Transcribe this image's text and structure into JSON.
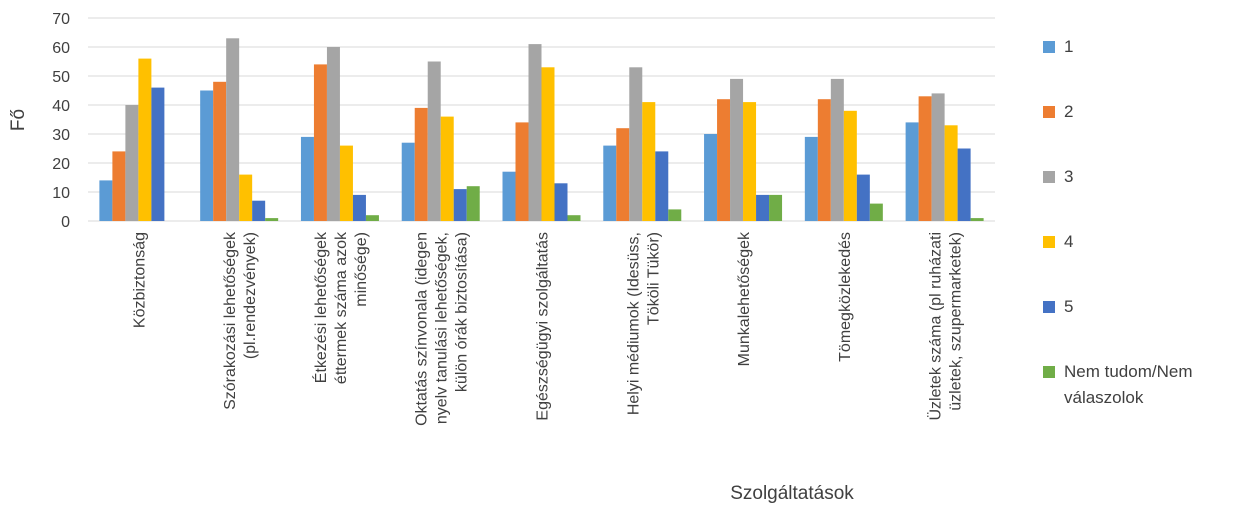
{
  "chart_data": {
    "type": "bar",
    "xlabel": "Szolgáltatások",
    "ylabel": "Fő",
    "ylim": [
      0,
      70
    ],
    "yticks": [
      "0",
      "10",
      "20",
      "30",
      "40",
      "50",
      "60",
      "70"
    ],
    "grid": true,
    "legend_position": "right",
    "categories": [
      [
        "Közbiztonság"
      ],
      [
        "Szórakozási lehetőségek",
        "(pl.rendezvények)"
      ],
      [
        "Étkezési lehetőségek",
        "éttermek száma azok",
        "minősége)"
      ],
      [
        "Oktatás színvonala (idegen",
        "nyelv tanulási lehetőségek,",
        "külön órák biztosítása)"
      ],
      [
        "Egészségügyi szolgáltatás"
      ],
      [
        "Helyi médiumok (Idesüss,",
        "Tököli Tükör)"
      ],
      [
        "Munkalehetőségek"
      ],
      [
        "Tömegközlekedés"
      ],
      [
        "Üzletek száma (pl ruházati",
        "üzletek, szupermarketek)"
      ]
    ],
    "series": [
      {
        "name": "1",
        "color": "#5B9BD5",
        "values": [
          14,
          45,
          29,
          27,
          17,
          26,
          30,
          29,
          34
        ]
      },
      {
        "name": "2",
        "color": "#ED7D31",
        "values": [
          24,
          48,
          54,
          39,
          34,
          32,
          42,
          42,
          43
        ]
      },
      {
        "name": "3",
        "color": "#A5A5A5",
        "values": [
          40,
          63,
          60,
          55,
          61,
          53,
          49,
          49,
          44
        ]
      },
      {
        "name": "4",
        "color": "#FFC000",
        "values": [
          56,
          16,
          26,
          36,
          53,
          41,
          41,
          38,
          33
        ]
      },
      {
        "name": "5",
        "color": "#4472C4",
        "values": [
          46,
          7,
          9,
          11,
          13,
          24,
          9,
          16,
          25
        ]
      },
      {
        "name": "Nem tudom/Nem válaszolok",
        "color": "#70AD47",
        "values": [
          0,
          1,
          2,
          12,
          2,
          4,
          9,
          6,
          1
        ]
      }
    ]
  }
}
